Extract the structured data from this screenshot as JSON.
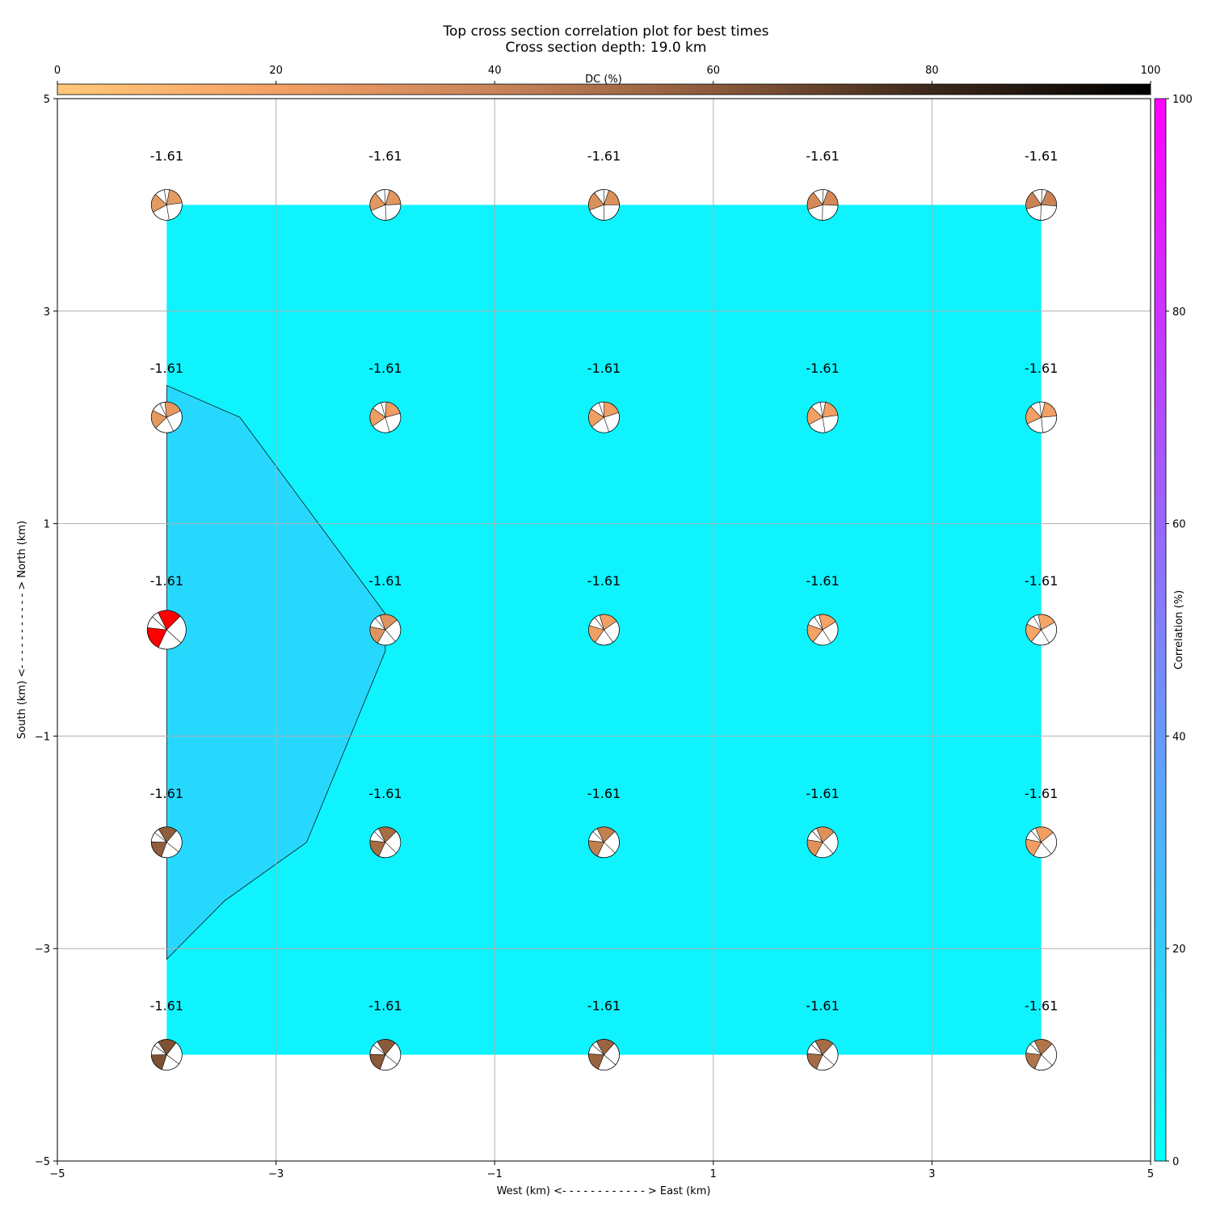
{
  "chart_data": {
    "type": "heatmap",
    "title": "Top cross section correlation plot for best times",
    "subtitle": "Cross section depth: 19.0 km",
    "xlabel": "West (km) <- - - - - - - - - - - - > East (km)",
    "ylabel": "South (km) <- - - - - - - - - - - > North (km)",
    "xlim": [
      -5,
      5
    ],
    "ylim": [
      -5,
      5
    ],
    "xticks": [
      "−5",
      "−3",
      "−1",
      "1",
      "3",
      "5"
    ],
    "yticks": [
      "−5",
      "−3",
      "−1",
      "1",
      "3",
      "5"
    ],
    "grid": true,
    "dc_colorbar": {
      "label": "DC (%)",
      "position": "top",
      "range": [
        0,
        100
      ],
      "ticks": [
        "0",
        "20",
        "40",
        "60",
        "80",
        "100"
      ],
      "colors": [
        "#ffc879",
        "#f4a064",
        "#c8845a",
        "#8c5a3c",
        "#3c281a",
        "#000000"
      ]
    },
    "correlation_colorbar": {
      "label": "Correlation (%)",
      "position": "right",
      "range": [
        0,
        100
      ],
      "ticks": [
        "0",
        "20",
        "40",
        "60",
        "80",
        "100"
      ],
      "colors": [
        "#00ffff",
        "#ff00ff"
      ]
    },
    "correlation_field": {
      "extent_x": [
        -4,
        4
      ],
      "extent_y": [
        -4,
        4
      ],
      "base_color": "#0ef3fd",
      "contour_color": "#27d8fe",
      "contour_polygon": [
        [
          -4.0,
          2.3
        ],
        [
          -3.33,
          2.0
        ],
        [
          -2.0,
          0.15
        ],
        [
          -2.0,
          -0.2
        ],
        [
          -2.72,
          -2.0
        ],
        [
          -3.47,
          -2.55
        ],
        [
          -4.0,
          -3.1
        ]
      ]
    },
    "points": [
      {
        "x": -4,
        "y": 4,
        "label": "-1.61",
        "color": "#e49b62",
        "large": false,
        "angle": 72
      },
      {
        "x": -2,
        "y": 4,
        "label": "-1.61",
        "color": "#e09760",
        "large": false,
        "angle": 78
      },
      {
        "x": 0,
        "y": 4,
        "label": "-1.61",
        "color": "#d9915c",
        "large": false,
        "angle": 80
      },
      {
        "x": 2,
        "y": 4,
        "label": "-1.61",
        "color": "#d48b58",
        "large": false,
        "angle": 82
      },
      {
        "x": 4,
        "y": 4,
        "label": "-1.61",
        "color": "#c98356",
        "large": false,
        "angle": 84
      },
      {
        "x": -4,
        "y": 2,
        "label": "-1.61",
        "color": "#e7985f",
        "large": false,
        "angle": 55
      },
      {
        "x": -2,
        "y": 2,
        "label": "-1.61",
        "color": "#ee9d63",
        "large": false,
        "angle": 65
      },
      {
        "x": 0,
        "y": 2,
        "label": "-1.61",
        "color": "#f09e63",
        "large": false,
        "angle": 62
      },
      {
        "x": 2,
        "y": 2,
        "label": "-1.61",
        "color": "#f1a064",
        "large": false,
        "angle": 72
      },
      {
        "x": 4,
        "y": 2,
        "label": "-1.61",
        "color": "#f2a065",
        "large": false,
        "angle": 75
      },
      {
        "x": -4,
        "y": 0,
        "label": "-1.61",
        "color": "#ff0000",
        "large": true,
        "angle": 35
      },
      {
        "x": -2,
        "y": 0,
        "label": "-1.61",
        "color": "#de9460",
        "large": false,
        "angle": 40
      },
      {
        "x": 0,
        "y": 0,
        "label": "-1.61",
        "color": "#f0a064",
        "large": false,
        "angle": 45
      },
      {
        "x": 2,
        "y": 0,
        "label": "-1.61",
        "color": "#f4a266",
        "large": false,
        "angle": 48
      },
      {
        "x": 4,
        "y": 0,
        "label": "-1.61",
        "color": "#f5a668",
        "large": false,
        "angle": 50
      },
      {
        "x": -4,
        "y": -2,
        "label": "-1.61",
        "color": "#8f5e3d",
        "large": false,
        "angle": 30
      },
      {
        "x": -2,
        "y": -2,
        "label": "-1.61",
        "color": "#a86d45",
        "large": false,
        "angle": 35
      },
      {
        "x": 0,
        "y": -2,
        "label": "-1.61",
        "color": "#c2804f",
        "large": false,
        "angle": 35
      },
      {
        "x": 2,
        "y": -2,
        "label": "-1.61",
        "color": "#e0915a",
        "large": false,
        "angle": 38
      },
      {
        "x": 4,
        "y": -2,
        "label": "-1.61",
        "color": "#f29e62",
        "large": false,
        "angle": 40
      },
      {
        "x": -4,
        "y": -4,
        "label": "-1.61",
        "color": "#7e5134",
        "large": false,
        "angle": 28
      },
      {
        "x": -2,
        "y": -4,
        "label": "-1.61",
        "color": "#8c5a3a",
        "large": false,
        "angle": 30
      },
      {
        "x": 0,
        "y": -4,
        "label": "-1.61",
        "color": "#9a6440",
        "large": false,
        "angle": 32
      },
      {
        "x": 2,
        "y": -4,
        "label": "-1.61",
        "color": "#a66c45",
        "large": false,
        "angle": 33
      },
      {
        "x": 4,
        "y": -4,
        "label": "-1.61",
        "color": "#b2744a",
        "large": false,
        "angle": 35
      }
    ]
  }
}
